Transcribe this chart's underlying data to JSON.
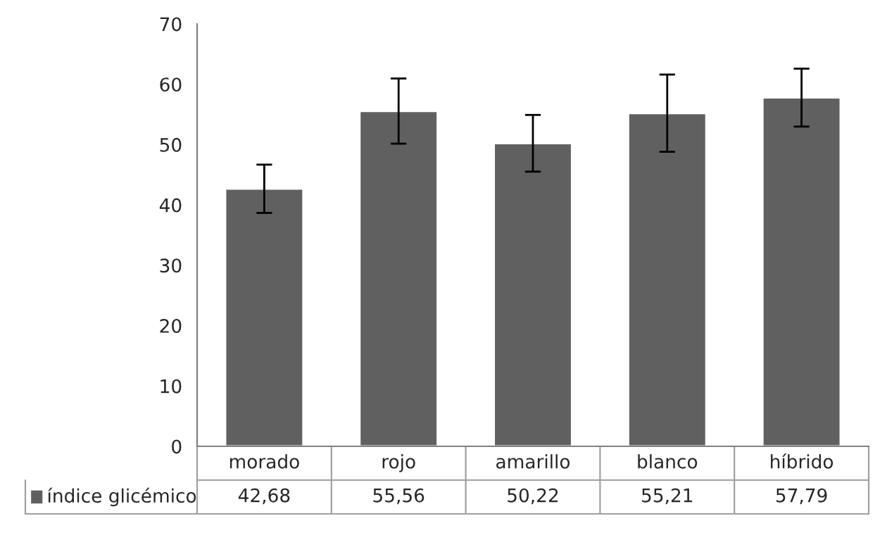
{
  "chart_data": {
    "type": "bar",
    "categories": [
      "morado",
      "rojo",
      "amarillo",
      "blanco",
      "híbrido"
    ],
    "series": [
      {
        "name": "índice glicémico",
        "color": "#606060",
        "values": [
          42.68,
          55.56,
          50.22,
          55.21,
          57.79
        ],
        "value_labels": [
          "42,68",
          "55,56",
          "50,22",
          "55,21",
          "57,79"
        ],
        "errors": [
          4.0,
          5.4,
          4.7,
          6.4,
          4.8
        ]
      }
    ],
    "ylim": [
      0,
      70
    ],
    "yticks": [
      0,
      10,
      20,
      30,
      40,
      50,
      60,
      70
    ],
    "grid": false,
    "legend": "bottom"
  }
}
